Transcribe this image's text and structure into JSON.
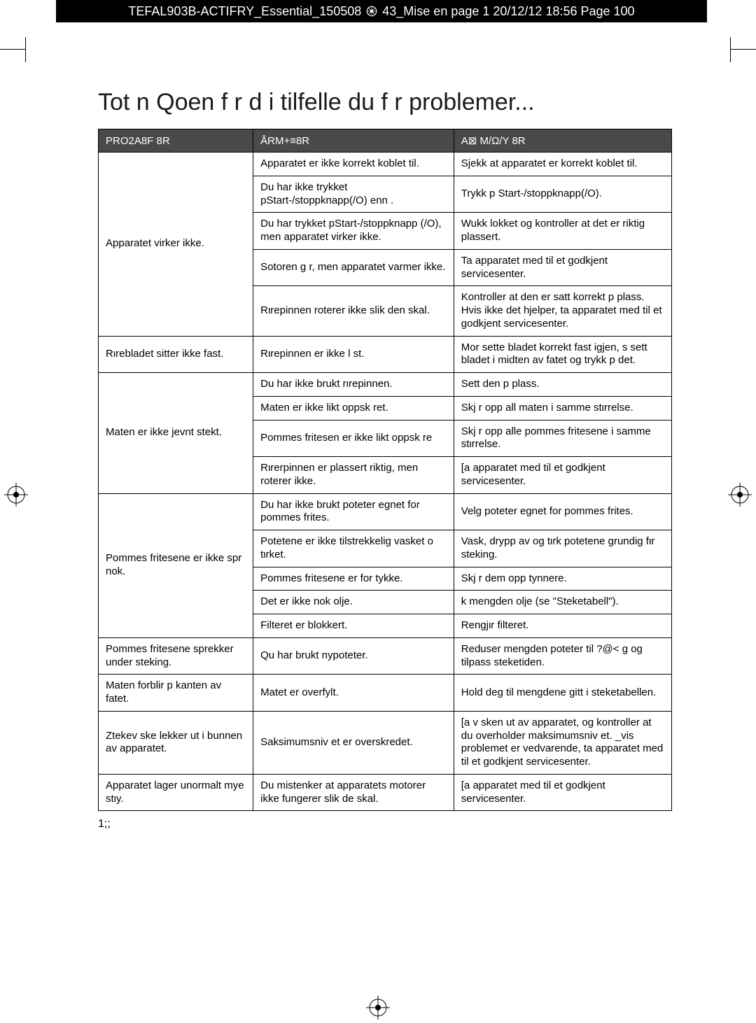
{
  "header": {
    "text_left": "TEFAL903B-ACTIFRY_Essential_150508",
    "text_right": "43_Mise en page 1  20/12/12  18:56  Page 100"
  },
  "title": "Tot n Qoen f r d i tilfelle du f r problemer...",
  "columns": [
    "PRO2A8F 8R",
    "ÅRM+≡8R",
    "A⊠ M/Ω/Y 8R"
  ],
  "rows": [
    {
      "p": "Apparatet virker ikke.",
      "span": 5,
      "c": "Apparatet er ikke korrekt koblet til.",
      "s": "Sjekk at apparatet er korrekt koblet til."
    },
    {
      "c": "Du har ikke trykket pStart-/stoppknapp(/O) enn .",
      "s": "Trykk p Start-/stoppknapp(/O)."
    },
    {
      "c": "Du har trykket pStart-/stoppknapp (/O), men apparatet virker ikke.",
      "s": "Wukk lokket og kontroller at det er riktig plassert."
    },
    {
      "c": "Sotoren g r, men apparatet varmer ikke.",
      "s": "Ta apparatet med til et godkjent servicesenter."
    },
    {
      "c": "Rιrepinnen roterer ikke slik den skal.",
      "s": "Kontroller at den er satt korrekt p  plass. Hvis ikke  det hjelper, ta apparatet med til et godkjent servicesenter."
    },
    {
      "p": "Rιrebladet sitter ikke fast.",
      "span": 1,
      "c": "Rιrepinnen er ikke l st.",
      "s": "Mor   sette bladet korrekt fast igjen, s  sett bladet i midten av fatet og trykk p  det."
    },
    {
      "p": "Maten er ikke jevnt stekt.",
      "span": 4,
      "c": "Du har ikke brukt rιrepinnen.",
      "s": "Sett den p  plass."
    },
    {
      "c": "Maten er ikke likt oppsk ret.",
      "s": "Skj r opp all maten i samme stιrrelse."
    },
    {
      "c": "Pommes fritesen er ikke likt oppsk re",
      "s": "Skj r opp alle pommes fritesene i samme stιrrelse."
    },
    {
      "c": "Rιrerpinnen er plassert riktig, men roterer ikke.",
      "s": "[a apparatet med til et godkjent servicesenter."
    },
    {
      "p": "Pommes fritesene er ikke spr nok.",
      "span": 5,
      "c": "Du har ikke brukt poteter egnet for pommes frites.",
      "s": "Velg poteter egnet for pommes frites."
    },
    {
      "c": "Potetene er ikke tilstrekkelig vasket o tιrket.",
      "s": "Vask, drypp av og tιrk potetene grundig fιr steking."
    },
    {
      "c": "Pommes fritesene er for tykke.",
      "s": "Skj r dem opp tynnere."
    },
    {
      "c": "Det er ikke nok olje.",
      "s": " k mengden olje (se \"Steketabell\")."
    },
    {
      "c": "Filteret er blokkert.",
      "s": "Rengjιr filteret."
    },
    {
      "p": "Pommes fritesene sprekker under steking.",
      "span": 1,
      "c": "Qu har brukt nypoteter.",
      "s": "Reduser mengden poteter til ?@< g og tilpass steketiden."
    },
    {
      "p": "Maten forblir p  kanten av fatet.",
      "span": 1,
      "c": "Matet er overfylt.",
      "s": "Hold deg til mengdene gitt i steketabellen."
    },
    {
      "p": "Ztekev ske lekker ut i bunnen av apparatet.",
      "span": 1,
      "c": "Saksimumsniv et er overskredet.",
      "s": "[a v sken ut av apparatet, og kontroller at du overholder maksimumsniv et. _vis problemet er vedvarende, ta apparatet med til et godkjent servicesenter."
    },
    {
      "p": "Apparatet lager unormalt mye stιy.",
      "span": 1,
      "c": "Du mistenker at apparatets motorer ikke fungerer slik de skal.",
      "s": "[a apparatet med til et godkjent servicesenter."
    }
  ],
  "page_number": "1;;"
}
